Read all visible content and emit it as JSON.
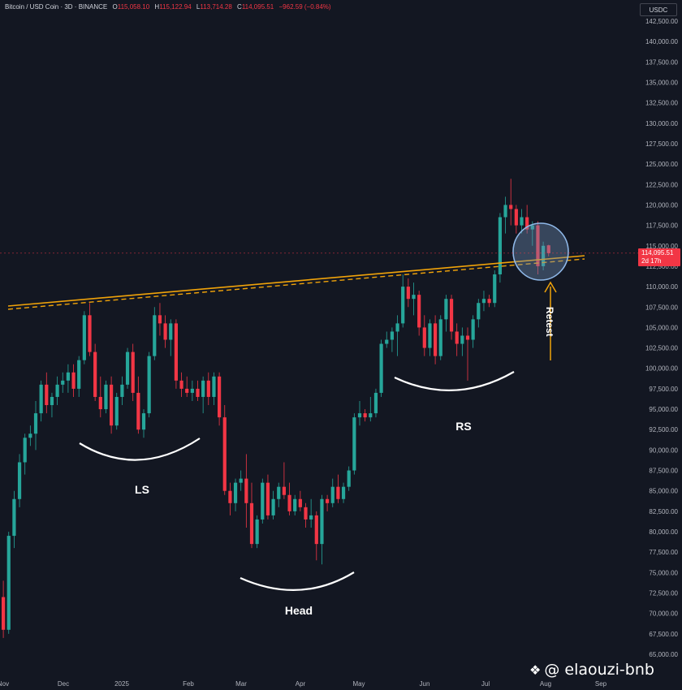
{
  "header": {
    "symbol": "Bitcoin / USD Coin · 3D · BINANCE",
    "o_label": "O",
    "o_value": "115,058.10",
    "h_label": "H",
    "h_value": "115,122.94",
    "l_label": "L",
    "l_value": "113,714.28",
    "c_label": "C",
    "c_value": "114,095.51",
    "change": "−962.59 (−0.84%)"
  },
  "currency": "USDC",
  "price_tag": {
    "price": "114,095.51",
    "countdown": "2d 17h"
  },
  "watermark": {
    "icon": "binance-diamond-icon",
    "text": "@ elaouzi-bnb"
  },
  "colors": {
    "background": "#131722",
    "up": "#26a69a",
    "down": "#f23645",
    "trendline": "#f0a30a",
    "grid_text": "#b2b5be",
    "highlight": "#8fb8e8"
  },
  "chart_data": {
    "type": "candlestick",
    "title": "Bitcoin / USD Coin · 3D · BINANCE",
    "ylim": [
      65000,
      143000
    ],
    "y_ticks": [
      65000,
      67500,
      70000,
      72500,
      75000,
      77500,
      80000,
      82500,
      85000,
      87500,
      90000,
      92500,
      95000,
      97500,
      100000,
      102500,
      105000,
      107500,
      110000,
      112500,
      115000,
      117500,
      120000,
      122500,
      125000,
      127500,
      130000,
      132500,
      135000,
      137500,
      140000,
      142500
    ],
    "y_tick_labels": [
      "65,000.00",
      "67,500.00",
      "70,000.00",
      "72,500.00",
      "75,000.00",
      "77,500.00",
      "80,000.00",
      "82,500.00",
      "85,000.00",
      "87,500.00",
      "90,000.00",
      "92,500.00",
      "95,000.00",
      "97,500.00",
      "100,000.00",
      "102,500.00",
      "105,000.00",
      "107,500.00",
      "110,000.00",
      "112,500.00",
      "115,000.00",
      "117,500.00",
      "120,000.00",
      "122,500.00",
      "125,000.00",
      "127,500.00",
      "130,000.00",
      "132,500.00",
      "135,000.00",
      "137,500.00",
      "140,000.00",
      "142,500.00"
    ],
    "x_ticks": [
      "Nov",
      "Dec",
      "2025",
      "Feb",
      "Mar",
      "Apr",
      "May",
      "Jun",
      "Jul",
      "Aug",
      "Sep"
    ],
    "last_price": 114095.51,
    "candles": [
      [
        72000,
        74000,
        67000,
        68000
      ],
      [
        68000,
        80000,
        67500,
        79500
      ],
      [
        79500,
        85000,
        78000,
        84000
      ],
      [
        84000,
        89500,
        83000,
        88500
      ],
      [
        88500,
        92000,
        87000,
        91500
      ],
      [
        91500,
        93000,
        90500,
        92000
      ],
      [
        92000,
        96000,
        90000,
        94500
      ],
      [
        94500,
        98500,
        93500,
        98000
      ],
      [
        98000,
        99500,
        94500,
        95500
      ],
      [
        95500,
        97000,
        94000,
        96500
      ],
      [
        96500,
        99000,
        95500,
        98000
      ],
      [
        98000,
        99500,
        97000,
        98500
      ],
      [
        98500,
        100500,
        97000,
        99500
      ],
      [
        99500,
        100500,
        96500,
        97500
      ],
      [
        97500,
        101500,
        96500,
        101000
      ],
      [
        101000,
        107000,
        100500,
        106500
      ],
      [
        106500,
        108000,
        101500,
        102000
      ],
      [
        102000,
        103000,
        96000,
        96500
      ],
      [
        96500,
        99000,
        94000,
        95000
      ],
      [
        95000,
        98500,
        94500,
        98000
      ],
      [
        98000,
        99000,
        92000,
        93000
      ],
      [
        93000,
        97000,
        92500,
        96500
      ],
      [
        96500,
        99000,
        95500,
        98000
      ],
      [
        98000,
        102500,
        97500,
        102000
      ],
      [
        102000,
        103000,
        96000,
        97000
      ],
      [
        97000,
        99000,
        92000,
        92500
      ],
      [
        92500,
        95000,
        91500,
        94500
      ],
      [
        94500,
        102000,
        94000,
        101500
      ],
      [
        101500,
        107500,
        101000,
        106500
      ],
      [
        106500,
        108000,
        104000,
        105500
      ],
      [
        105500,
        106500,
        102500,
        103500
      ],
      [
        103500,
        106000,
        101500,
        105500
      ],
      [
        105500,
        106000,
        97500,
        98500
      ],
      [
        98500,
        99500,
        96500,
        97500
      ],
      [
        97500,
        99000,
        96500,
        97000
      ],
      [
        97000,
        98500,
        96000,
        97500
      ],
      [
        97500,
        98500,
        96000,
        96500
      ],
      [
        96500,
        99000,
        94500,
        98500
      ],
      [
        98500,
        99500,
        95500,
        96500
      ],
      [
        96500,
        99500,
        95500,
        99000
      ],
      [
        99000,
        99500,
        93000,
        94000
      ],
      [
        94000,
        95500,
        84500,
        85000
      ],
      [
        85000,
        86000,
        82000,
        83500
      ],
      [
        83500,
        86500,
        82500,
        86000
      ],
      [
        86000,
        87500,
        85000,
        86500
      ],
      [
        86500,
        89500,
        80500,
        83500
      ],
      [
        83500,
        86000,
        78000,
        78500
      ],
      [
        78500,
        82000,
        78000,
        81500
      ],
      [
        81500,
        86500,
        81000,
        86000
      ],
      [
        86000,
        87000,
        81500,
        82000
      ],
      [
        82000,
        85000,
        81500,
        84000
      ],
      [
        84000,
        86000,
        83000,
        85500
      ],
      [
        85500,
        88500,
        84000,
        84500
      ],
      [
        84500,
        86000,
        82000,
        82500
      ],
      [
        82500,
        84500,
        82000,
        84000
      ],
      [
        84000,
        85000,
        82500,
        83000
      ],
      [
        83000,
        83500,
        80500,
        81500
      ],
      [
        81500,
        84000,
        80500,
        82000
      ],
      [
        82000,
        82500,
        76500,
        78500
      ],
      [
        78500,
        84500,
        76000,
        84000
      ],
      [
        84000,
        84500,
        82500,
        83500
      ],
      [
        83500,
        86500,
        83000,
        85500
      ],
      [
        85500,
        87000,
        83500,
        84000
      ],
      [
        84000,
        86000,
        83500,
        85500
      ],
      [
        85500,
        88000,
        85000,
        87500
      ],
      [
        87500,
        94500,
        87000,
        94000
      ],
      [
        94000,
        96000,
        93000,
        94500
      ],
      [
        94500,
        95000,
        93500,
        94000
      ],
      [
        94000,
        96500,
        93500,
        94500
      ],
      [
        94500,
        97500,
        94000,
        97000
      ],
      [
        97000,
        103500,
        96500,
        103000
      ],
      [
        103000,
        104500,
        102500,
        103500
      ],
      [
        103500,
        105000,
        102000,
        104500
      ],
      [
        104500,
        106500,
        101500,
        105500
      ],
      [
        105500,
        111500,
        105000,
        110000
      ],
      [
        110000,
        111000,
        107500,
        108500
      ],
      [
        108500,
        110500,
        106500,
        109000
      ],
      [
        109000,
        109500,
        104000,
        105000
      ],
      [
        105000,
        106500,
        101500,
        102500
      ],
      [
        102500,
        106000,
        101500,
        105500
      ],
      [
        105500,
        106500,
        100500,
        101500
      ],
      [
        101500,
        106500,
        101000,
        106000
      ],
      [
        106000,
        109000,
        104500,
        108500
      ],
      [
        108500,
        109000,
        103500,
        104500
      ],
      [
        104500,
        105500,
        101500,
        103000
      ],
      [
        103000,
        105000,
        101500,
        104000
      ],
      [
        104000,
        105000,
        98500,
        103500
      ],
      [
        103500,
        106500,
        102500,
        106000
      ],
      [
        106000,
        108500,
        105000,
        108000
      ],
      [
        108000,
        109500,
        107000,
        108500
      ],
      [
        108500,
        109000,
        107500,
        108000
      ],
      [
        108000,
        112000,
        107500,
        111500
      ],
      [
        111500,
        119000,
        110500,
        118500
      ],
      [
        118500,
        121000,
        116500,
        120000
      ],
      [
        120000,
        123200,
        117500,
        119500
      ],
      [
        119500,
        120000,
        116500,
        117500
      ],
      [
        117500,
        119500,
        116500,
        118500
      ],
      [
        118500,
        120000,
        116500,
        117000
      ],
      [
        117000,
        118000,
        115000,
        117500
      ],
      [
        117500,
        118000,
        111500,
        112500
      ],
      [
        112500,
        115500,
        112000,
        115000
      ],
      [
        115058.1,
        115122.94,
        113714.28,
        114095.51
      ]
    ],
    "trendline": {
      "from": [
        "Nov",
        107500
      ],
      "to": [
        "Aug",
        113000
      ]
    },
    "annotations": [
      "LS",
      "Head",
      "RS",
      "Retest"
    ]
  }
}
